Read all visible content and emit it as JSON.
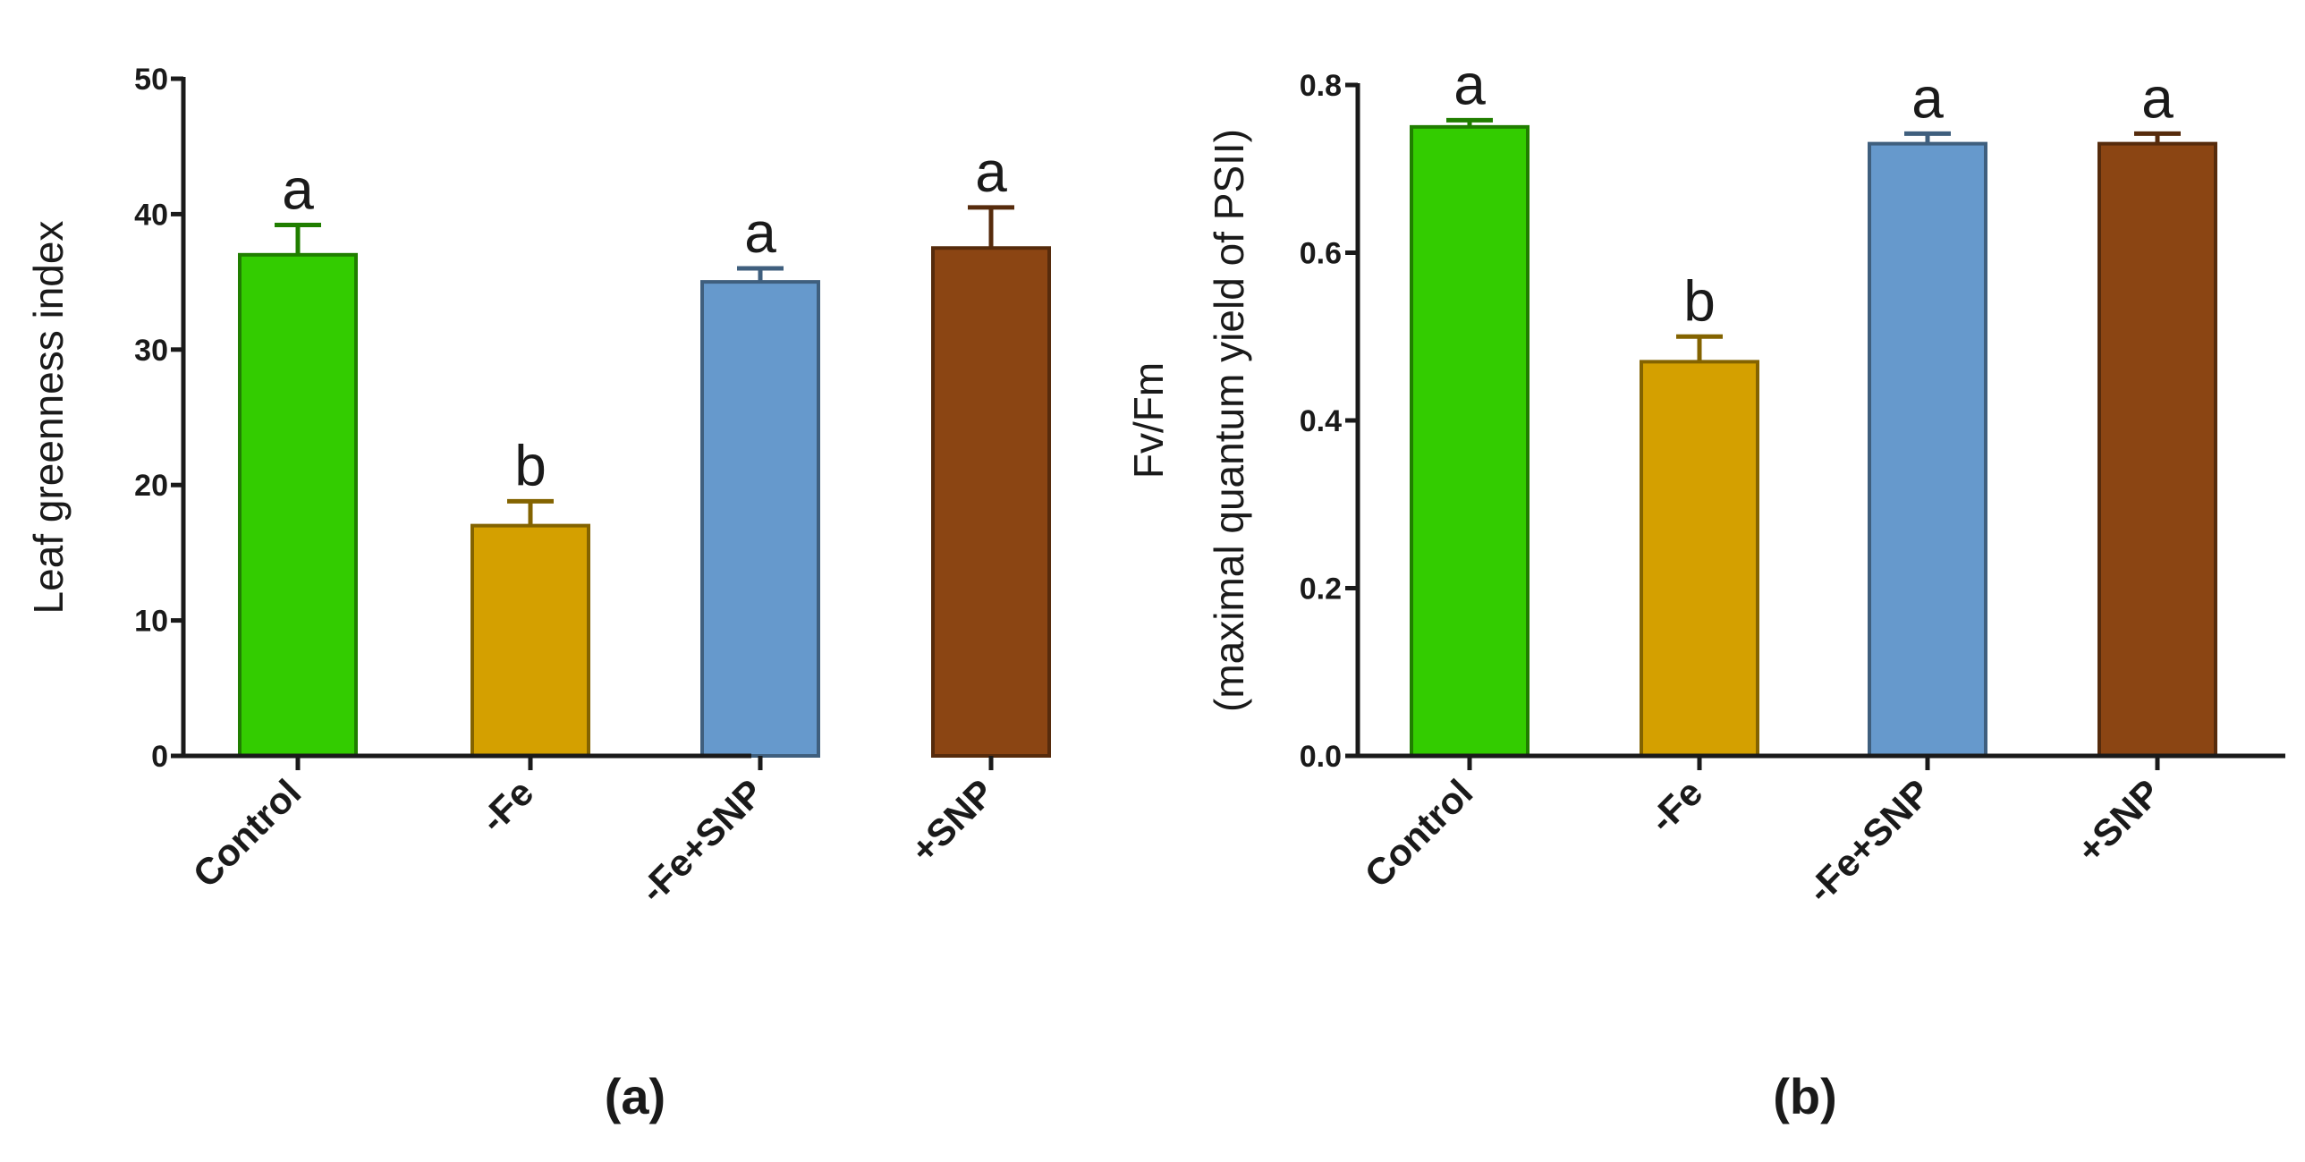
{
  "chart_data": [
    {
      "type": "bar",
      "panel_label": "(a)",
      "title": "",
      "xlabel": "",
      "ylabel": "Leaf greenness index",
      "ylabel_sub": "",
      "categories": [
        "Control",
        "-Fe",
        "-Fe+SNP",
        "+SNP"
      ],
      "series": [
        {
          "name": "Leaf greenness index",
          "values": [
            37,
            17,
            35,
            37.5
          ],
          "errors": [
            2.2,
            1.8,
            1.0,
            3.0
          ]
        }
      ],
      "significance": [
        "a",
        "b",
        "a",
        "a"
      ],
      "colors": [
        "#33cc00",
        "#d4a000",
        "#6699cc",
        "#8b4513"
      ],
      "ylim": [
        0,
        50
      ],
      "yticks": [
        0,
        10,
        20,
        30,
        40,
        50
      ],
      "ytick_labels": [
        "0",
        "10",
        "20",
        "30",
        "40",
        "50"
      ]
    },
    {
      "type": "bar",
      "panel_label": "(b)",
      "title": "",
      "xlabel": "",
      "ylabel": "Fv/Fm",
      "ylabel_sub": "(maximal quantum yield of PSII)",
      "categories": [
        "Control",
        "-Fe",
        "-Fe+SNP",
        "+SNP"
      ],
      "series": [
        {
          "name": "Fv/Fm",
          "values": [
            0.75,
            0.47,
            0.73,
            0.73
          ],
          "errors": [
            0.008,
            0.03,
            0.012,
            0.012
          ]
        }
      ],
      "significance": [
        "a",
        "b",
        "a",
        "a"
      ],
      "colors": [
        "#33cc00",
        "#d4a000",
        "#6699cc",
        "#8b4513"
      ],
      "ylim": [
        0,
        0.8
      ],
      "yticks": [
        0,
        0.2,
        0.4,
        0.6,
        0.8
      ],
      "ytick_labels": [
        "0.0",
        "0.2",
        "0.4",
        "0.6",
        "0.8"
      ]
    }
  ]
}
